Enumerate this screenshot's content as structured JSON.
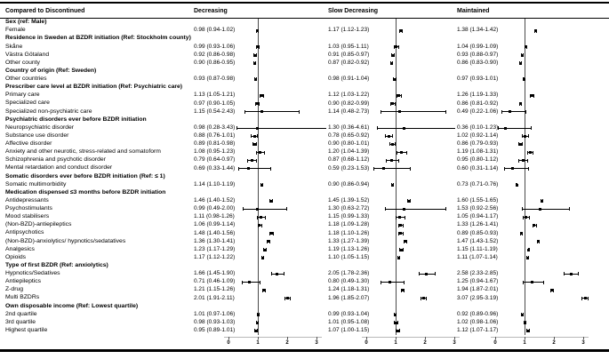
{
  "header": {
    "compared_label": "Compared to Discontinued"
  },
  "chart_data": {
    "type": "scatter",
    "subtype": "forest-plot",
    "columns": [
      "Decreasing",
      "Slow Decreasing",
      "Maintained"
    ],
    "x_ticks": [
      0,
      1,
      2,
      3
    ],
    "xlim": [
      0,
      3
    ],
    "reference_line": 1,
    "rows": [
      {
        "label": "Sex (ref: Male)",
        "section": true
      },
      {
        "label": "Female",
        "section": false,
        "cells": [
          {
            "text": "0.98 (0.94-1.02)",
            "est": 0.98,
            "lo": 0.94,
            "hi": 1.02
          },
          {
            "text": "1.17 (1.12-1.23)",
            "est": 1.17,
            "lo": 1.12,
            "hi": 1.23
          },
          {
            "text": "1.38 (1.34-1.42)",
            "est": 1.38,
            "lo": 1.34,
            "hi": 1.42
          }
        ]
      },
      {
        "label": "Residence in Sweden at BZDR initiation (Ref: Stockholm county)",
        "section": true
      },
      {
        "label": "Skåne",
        "section": false,
        "cells": [
          {
            "text": "0.99 (0.93-1.06)",
            "est": 0.99,
            "lo": 0.93,
            "hi": 1.06
          },
          {
            "text": "1.03 (0.95-1.11)",
            "est": 1.03,
            "lo": 0.95,
            "hi": 1.11
          },
          {
            "text": "1.04 (0.99-1.09)",
            "est": 1.04,
            "lo": 0.99,
            "hi": 1.09
          }
        ]
      },
      {
        "label": "Västra Götaland",
        "section": false,
        "cells": [
          {
            "text": "0.92 (0.86-0.98)",
            "est": 0.92,
            "lo": 0.86,
            "hi": 0.98
          },
          {
            "text": "0.91 (0.85-0.97)",
            "est": 0.91,
            "lo": 0.85,
            "hi": 0.97
          },
          {
            "text": "0.93 (0.88-0.97)",
            "est": 0.93,
            "lo": 0.88,
            "hi": 0.97
          }
        ]
      },
      {
        "label": "Other county",
        "section": false,
        "cells": [
          {
            "text": "0.90 (0.86-0.95)",
            "est": 0.9,
            "lo": 0.86,
            "hi": 0.95
          },
          {
            "text": "0.87 (0.82-0.92)",
            "est": 0.87,
            "lo": 0.82,
            "hi": 0.92
          },
          {
            "text": "0.86 (0.83-0.90)",
            "est": 0.86,
            "lo": 0.83,
            "hi": 0.9
          }
        ]
      },
      {
        "label": "Country of origin (Ref: Sweden)",
        "section": true
      },
      {
        "label": "Other countries",
        "section": false,
        "cells": [
          {
            "text": "0.93 (0.87-0.98)",
            "est": 0.93,
            "lo": 0.87,
            "hi": 0.98
          },
          {
            "text": "0.98 (0.91-1.04)",
            "est": 0.98,
            "lo": 0.91,
            "hi": 1.04
          },
          {
            "text": "0.97 (0.93-1.01)",
            "est": 0.97,
            "lo": 0.93,
            "hi": 1.01
          }
        ]
      },
      {
        "label": "Prescriber care level at BZDR initiation (Ref: Psychiatric care)",
        "section": true
      },
      {
        "label": "Primary care",
        "section": false,
        "cells": [
          {
            "text": "1.13 (1.05-1.21)",
            "est": 1.13,
            "lo": 1.05,
            "hi": 1.21
          },
          {
            "text": "1.12 (1.03-1.22)",
            "est": 1.12,
            "lo": 1.03,
            "hi": 1.22
          },
          {
            "text": "1.26 (1.19-1.33)",
            "est": 1.26,
            "lo": 1.19,
            "hi": 1.33
          }
        ]
      },
      {
        "label": "Specialized care",
        "section": false,
        "cells": [
          {
            "text": "0.97 (0.90-1.05)",
            "est": 0.97,
            "lo": 0.9,
            "hi": 1.05
          },
          {
            "text": "0.90 (0.82-0.99)",
            "est": 0.9,
            "lo": 0.82,
            "hi": 0.99
          },
          {
            "text": "0.86 (0.81-0.92)",
            "est": 0.86,
            "lo": 0.81,
            "hi": 0.92
          }
        ]
      },
      {
        "label": "Specialized non-psychiatric care",
        "section": false,
        "cells": [
          {
            "text": "1.15 (0.54-2.43)",
            "est": 1.15,
            "lo": 0.54,
            "hi": 2.43
          },
          {
            "text": "1.14 (0.48-2.73)",
            "est": 1.14,
            "lo": 0.48,
            "hi": 2.73
          },
          {
            "text": "0.49 (0.22-1.06)",
            "est": 0.49,
            "lo": 0.22,
            "hi": 1.06
          }
        ]
      },
      {
        "label": "Psychiatric disorders ever before BZDR initiation",
        "section": true
      },
      {
        "label": "Neuropsychiatric disorder",
        "section": false,
        "cells": [
          {
            "text": "0.98 (0.28-3.43)",
            "est": 0.98,
            "lo": 0.28,
            "hi": 3.43
          },
          {
            "text": "1.30 (0.36-4.61)",
            "est": 1.3,
            "lo": 0.36,
            "hi": 4.61
          },
          {
            "text": "0.36 (0.10-1.23)",
            "est": 0.36,
            "lo": 0.1,
            "hi": 1.23
          }
        ]
      },
      {
        "label": "Substance use disorder",
        "section": false,
        "cells": [
          {
            "text": "0.88 (0.76-1.01)",
            "est": 0.88,
            "lo": 0.76,
            "hi": 1.01
          },
          {
            "text": "0.78 (0.65-0.92)",
            "est": 0.78,
            "lo": 0.65,
            "hi": 0.92
          },
          {
            "text": "1.02 (0.92-1.14)",
            "est": 1.02,
            "lo": 0.92,
            "hi": 1.14
          }
        ]
      },
      {
        "label": "Affective disorder",
        "section": false,
        "cells": [
          {
            "text": "0.89 (0.81-0.98)",
            "est": 0.89,
            "lo": 0.81,
            "hi": 0.98
          },
          {
            "text": "0.90 (0.80-1.01)",
            "est": 0.9,
            "lo": 0.8,
            "hi": 1.01
          },
          {
            "text": "0.86 (0.79-0.93)",
            "est": 0.86,
            "lo": 0.79,
            "hi": 0.93
          }
        ]
      },
      {
        "label": "Anxiety and other neurotic, stress-related and somatoform",
        "section": false,
        "cells": [
          {
            "text": "1.08 (0.95-1.23)",
            "est": 1.08,
            "lo": 0.95,
            "hi": 1.23
          },
          {
            "text": "1.20 (1.04-1.39)",
            "est": 1.2,
            "lo": 1.04,
            "hi": 1.39
          },
          {
            "text": "1.19 (1.08-1.31)",
            "est": 1.19,
            "lo": 1.08,
            "hi": 1.31
          }
        ]
      },
      {
        "label": "Schizophrenia and psychotic disorder",
        "section": false,
        "cells": [
          {
            "text": "0.79 (0.64-0.97)",
            "est": 0.79,
            "lo": 0.64,
            "hi": 0.97
          },
          {
            "text": "0.87 (0.68-1.12)",
            "est": 0.87,
            "lo": 0.68,
            "hi": 1.12
          },
          {
            "text": "0.95 (0.80-1.12)",
            "est": 0.95,
            "lo": 0.8,
            "hi": 1.12
          }
        ]
      },
      {
        "label": "Mental retardation and conduct disorder",
        "section": false,
        "cells": [
          {
            "text": "0.69 (0.33-1.44)",
            "est": 0.69,
            "lo": 0.33,
            "hi": 1.44
          },
          {
            "text": "0.59 (0.23-1.53)",
            "est": 0.59,
            "lo": 0.23,
            "hi": 1.53
          },
          {
            "text": "0.60 (0.31-1.14)",
            "est": 0.6,
            "lo": 0.31,
            "hi": 1.14
          }
        ]
      },
      {
        "label": "Somatic disorders ever before BZDR initiation (Ref: ≤ 1)",
        "section": true
      },
      {
        "label": "Somatic multimorbidity",
        "section": false,
        "cells": [
          {
            "text": "1.14 (1.10-1.19)",
            "est": 1.14,
            "lo": 1.1,
            "hi": 1.19
          },
          {
            "text": "0.90 (0.86-0.94)",
            "est": 0.9,
            "lo": 0.86,
            "hi": 0.94
          },
          {
            "text": "0.73 (0.71-0.76)",
            "est": 0.73,
            "lo": 0.71,
            "hi": 0.76
          }
        ]
      },
      {
        "label": "Medication dispensed ≤3 months before BZDR initiation",
        "section": true
      },
      {
        "label": "Antidepressants",
        "section": false,
        "cells": [
          {
            "text": "1.46 (1.40-1.52)",
            "est": 1.46,
            "lo": 1.4,
            "hi": 1.52
          },
          {
            "text": "1.45 (1.39-1.52)",
            "est": 1.45,
            "lo": 1.39,
            "hi": 1.52
          },
          {
            "text": "1.60 (1.55-1.65)",
            "est": 1.6,
            "lo": 1.55,
            "hi": 1.65
          }
        ]
      },
      {
        "label": "Psychostimulants",
        "section": false,
        "cells": [
          {
            "text": "0.99 (0.49-2.00)",
            "est": 0.99,
            "lo": 0.49,
            "hi": 2.0
          },
          {
            "text": "1.30 (0.63-2.72)",
            "est": 1.3,
            "lo": 0.63,
            "hi": 2.72
          },
          {
            "text": "1.53 (0.92-2.56)",
            "est": 1.53,
            "lo": 0.92,
            "hi": 2.56
          }
        ]
      },
      {
        "label": "Mood stabilisers",
        "section": false,
        "cells": [
          {
            "text": "1.11 (0.98-1.26)",
            "est": 1.11,
            "lo": 0.98,
            "hi": 1.26
          },
          {
            "text": "1.15 (0.99-1.33)",
            "est": 1.15,
            "lo": 0.99,
            "hi": 1.33
          },
          {
            "text": "1.05 (0.94-1.17)",
            "est": 1.05,
            "lo": 0.94,
            "hi": 1.17
          }
        ]
      },
      {
        "label": "(Non-BZD)-antiepileptics",
        "section": false,
        "cells": [
          {
            "text": "1.06 (0.99-1.14)",
            "est": 1.06,
            "lo": 0.99,
            "hi": 1.14
          },
          {
            "text": "1.18 (1.09-1.28)",
            "est": 1.18,
            "lo": 1.09,
            "hi": 1.28
          },
          {
            "text": "1.33 (1.26-1.41)",
            "est": 1.33,
            "lo": 1.26,
            "hi": 1.41
          }
        ]
      },
      {
        "label": "Antipsychotics",
        "section": false,
        "cells": [
          {
            "text": "1.48 (1.40-1.56)",
            "est": 1.48,
            "lo": 1.4,
            "hi": 1.56
          },
          {
            "text": "1.18 (1.10-1.26)",
            "est": 1.18,
            "lo": 1.1,
            "hi": 1.26
          },
          {
            "text": "0.89 (0.85-0.93)",
            "est": 0.89,
            "lo": 0.85,
            "hi": 0.93
          }
        ]
      },
      {
        "label": "(Non-BZD)-anxiolytics/ hypnotics/sedatatives",
        "section": false,
        "cells": [
          {
            "text": "1.36 (1.30-1.41)",
            "est": 1.36,
            "lo": 1.3,
            "hi": 1.41
          },
          {
            "text": "1.33 (1.27-1.39)",
            "est": 1.33,
            "lo": 1.27,
            "hi": 1.39
          },
          {
            "text": "1.47 (1.43-1.52)",
            "est": 1.47,
            "lo": 1.43,
            "hi": 1.52
          }
        ]
      },
      {
        "label": "Analgesics",
        "section": false,
        "cells": [
          {
            "text": "1.23 (1.17-1.29)",
            "est": 1.23,
            "lo": 1.17,
            "hi": 1.29
          },
          {
            "text": "1.19 (1.13-1.26)",
            "est": 1.19,
            "lo": 1.13,
            "hi": 1.26
          },
          {
            "text": "1.15 (1.11-1.19)",
            "est": 1.15,
            "lo": 1.11,
            "hi": 1.19
          }
        ]
      },
      {
        "label": "Opioids",
        "section": false,
        "cells": [
          {
            "text": "1.17 (1.12-1.22)",
            "est": 1.17,
            "lo": 1.12,
            "hi": 1.22
          },
          {
            "text": "1.10 (1.05-1.15)",
            "est": 1.1,
            "lo": 1.05,
            "hi": 1.15
          },
          {
            "text": "1.11 (1.07-1.14)",
            "est": 1.11,
            "lo": 1.07,
            "hi": 1.14
          }
        ]
      },
      {
        "label": "Type of first BZDR (Ref: anxiolytics)",
        "section": true
      },
      {
        "label": "Hypnotics/Sedatives",
        "section": false,
        "cells": [
          {
            "text": "1.66 (1.45-1.90)",
            "est": 1.66,
            "lo": 1.45,
            "hi": 1.9
          },
          {
            "text": "2.05 (1.78-2.36)",
            "est": 2.05,
            "lo": 1.78,
            "hi": 2.36
          },
          {
            "text": "2.58 (2.33-2.85)",
            "est": 2.58,
            "lo": 2.33,
            "hi": 2.85
          }
        ]
      },
      {
        "label": "Antiepileptics",
        "section": false,
        "cells": [
          {
            "text": "0.71 (0.46-1.09)",
            "est": 0.71,
            "lo": 0.46,
            "hi": 1.09
          },
          {
            "text": "0.80 (0.49-1.30)",
            "est": 0.8,
            "lo": 0.49,
            "hi": 1.3
          },
          {
            "text": "1.25 (0.94-1.67)",
            "est": 1.25,
            "lo": 0.94,
            "hi": 1.67
          }
        ]
      },
      {
        "label": "Z-drug",
        "section": false,
        "cells": [
          {
            "text": "1.21 (1.15-1.26)",
            "est": 1.21,
            "lo": 1.15,
            "hi": 1.26
          },
          {
            "text": "1.24 (1.18-1.31)",
            "est": 1.24,
            "lo": 1.18,
            "hi": 1.31
          },
          {
            "text": "1.94 (1.87-2.01)",
            "est": 1.94,
            "lo": 1.87,
            "hi": 2.01
          }
        ]
      },
      {
        "label": "Multi BZDRs",
        "section": false,
        "cells": [
          {
            "text": "2.01 (1.91-2.11)",
            "est": 2.01,
            "lo": 1.91,
            "hi": 2.11
          },
          {
            "text": "1.96 (1.85-2.07)",
            "est": 1.96,
            "lo": 1.85,
            "hi": 2.07
          },
          {
            "text": "3.07 (2.95-3.19)",
            "est": 3.07,
            "lo": 2.95,
            "hi": 3.19
          }
        ]
      },
      {
        "label": "Own disposable income (Ref: Lowest quartile)",
        "section": true
      },
      {
        "label": "2nd quartile",
        "section": false,
        "cells": [
          {
            "text": "1.01 (0.97-1.06)",
            "est": 1.01,
            "lo": 0.97,
            "hi": 1.06
          },
          {
            "text": "0.99 (0.93-1.04)",
            "est": 0.99,
            "lo": 0.93,
            "hi": 1.04
          },
          {
            "text": "0.92 (0.89-0.96)",
            "est": 0.92,
            "lo": 0.89,
            "hi": 0.96
          }
        ]
      },
      {
        "label": "3rd quartile",
        "section": false,
        "cells": [
          {
            "text": "0.98 (0.93-1.03)",
            "est": 0.98,
            "lo": 0.93,
            "hi": 1.03
          },
          {
            "text": "1.01 (0.95-1.08)",
            "est": 1.01,
            "lo": 0.95,
            "hi": 1.08
          },
          {
            "text": "1.02 (0.98-1.06)",
            "est": 1.02,
            "lo": 0.98,
            "hi": 1.06
          }
        ]
      },
      {
        "label": "Highest quartile",
        "section": false,
        "cells": [
          {
            "text": "0.95 (0.89-1.01)",
            "est": 0.95,
            "lo": 0.89,
            "hi": 1.01
          },
          {
            "text": "1.07 (1.00-1.15)",
            "est": 1.07,
            "lo": 1.0,
            "hi": 1.15
          },
          {
            "text": "1.12 (1.07-1.17)",
            "est": 1.12,
            "lo": 1.07,
            "hi": 1.17
          }
        ]
      }
    ]
  }
}
